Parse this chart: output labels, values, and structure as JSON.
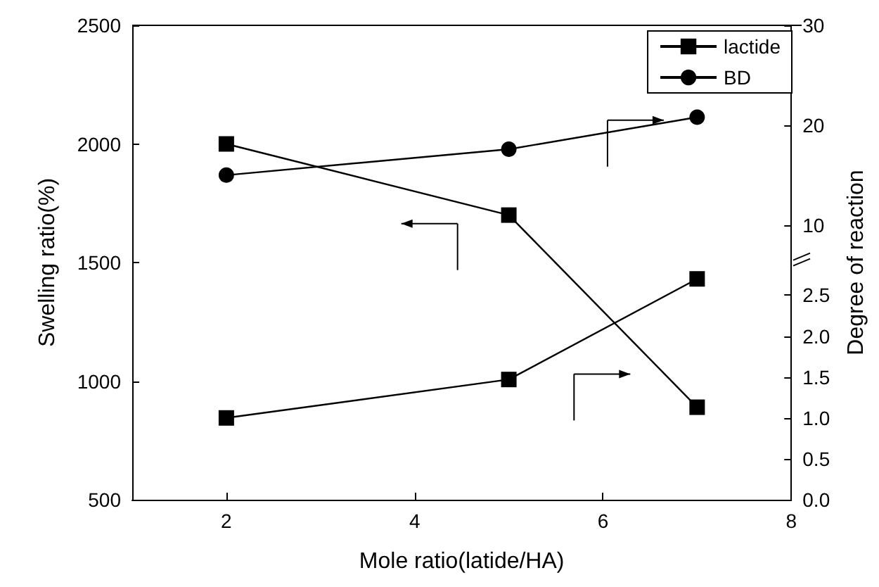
{
  "chart_data": {
    "type": "line",
    "xlabel": "Mole ratio(latide/HA)",
    "ylabel": "Swelling ratio(%)",
    "y2label": "Degree of reaction",
    "x": [
      2,
      5,
      7
    ],
    "series": [
      {
        "color": "#000000",
        "values": [
          2000,
          1700,
          890
        ],
        "marker": "square"
      },
      {
        "name": "lactide",
        "color": "#000000",
        "values": [
          1.0,
          1.47,
          2.7
        ],
        "axis": "y2",
        "marker": "square"
      },
      {
        "name": "BD",
        "color": "#000000",
        "values": [
          15,
          17.6,
          20.8
        ],
        "axis": "y3",
        "marker": "circle"
      }
    ],
    "xlim": [
      1,
      8
    ],
    "xticks": [
      2,
      4,
      6,
      8
    ],
    "ylim": [
      500,
      2500
    ],
    "yticks": [
      500,
      1000,
      1500,
      2000,
      2500
    ],
    "y2lim": [
      0,
      5.8
    ],
    "y2ticks": [
      {
        "value": 0,
        "label": "0.0"
      },
      0.5,
      {
        "value": 1,
        "label": "1.0"
      },
      1.5,
      {
        "value": 2,
        "label": "2.0"
      },
      2.5
    ],
    "y3lim": [
      -17.5,
      30
    ],
    "y3ticks": [
      10,
      20,
      30
    ],
    "legend": "top right",
    "grid": false,
    "line_style": "solid"
  }
}
